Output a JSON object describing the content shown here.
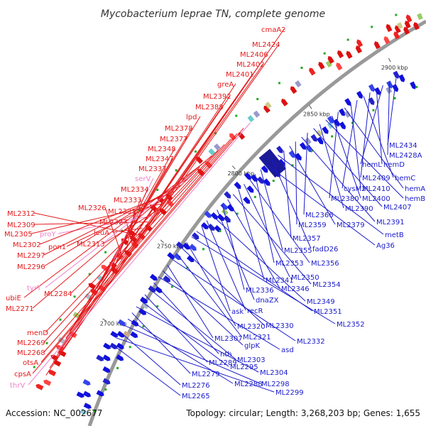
{
  "title": "Mycobacterium leprae TN, complete genome",
  "footer": {
    "accession": "Accession: NC_002677",
    "summary": "Topology: circular; Length: 3,268,203 bp; Genes: 1,655"
  },
  "colors": {
    "forward_label": "#e41a1c",
    "reverse_label": "#1a1acc",
    "rna_label": "#ee82c8",
    "backbone": "#999999",
    "rna_feature": "#22aa22"
  },
  "ticks": [
    "2700 kbp",
    "2750 kbp",
    "2800 kbp",
    "2850 kbp",
    "2900 kbp"
  ],
  "forward_labels": [
    {
      "text": "cmaA2",
      "kind": "cds"
    },
    {
      "text": "ML2424",
      "kind": "cds"
    },
    {
      "text": "ML2406",
      "kind": "cds"
    },
    {
      "text": "ML2402",
      "kind": "cds"
    },
    {
      "text": "ML2401",
      "kind": "cds"
    },
    {
      "text": "greA",
      "kind": "cds"
    },
    {
      "text": "ML2392",
      "kind": "cds"
    },
    {
      "text": "ML2388",
      "kind": "cds"
    },
    {
      "text": "lpd",
      "kind": "cds"
    },
    {
      "text": "ML2378",
      "kind": "cds"
    },
    {
      "text": "ML2377",
      "kind": "cds"
    },
    {
      "text": "ML2348",
      "kind": "cds"
    },
    {
      "text": "ML2347",
      "kind": "cds"
    },
    {
      "text": "ML2337",
      "kind": "cds"
    },
    {
      "text": "serV",
      "kind": "rna"
    },
    {
      "text": "ML2334",
      "kind": "cds"
    },
    {
      "text": "ML2333",
      "kind": "cds"
    },
    {
      "text": "ML2326",
      "kind": "cds"
    },
    {
      "text": "ML2331",
      "kind": "cds"
    },
    {
      "text": "ML2327",
      "kind": "cds"
    },
    {
      "text": "ML2312",
      "kind": "cds"
    },
    {
      "text": "leuA",
      "kind": "cds"
    },
    {
      "text": "ML2309",
      "kind": "cds"
    },
    {
      "text": "proY",
      "kind": "rna"
    },
    {
      "text": "ML2313",
      "kind": "cds"
    },
    {
      "text": "ML2305",
      "kind": "cds"
    },
    {
      "text": "pon1",
      "kind": "cds"
    },
    {
      "text": "ML2302",
      "kind": "cds"
    },
    {
      "text": "ML2297",
      "kind": "cds"
    },
    {
      "text": "ML2296",
      "kind": "cds"
    },
    {
      "text": "tyrT",
      "kind": "rna"
    },
    {
      "text": "ML2284",
      "kind": "cds"
    },
    {
      "text": "ubiE",
      "kind": "cds"
    },
    {
      "text": "ML2271",
      "kind": "cds"
    },
    {
      "text": "menD",
      "kind": "cds"
    },
    {
      "text": "ML2269",
      "kind": "cds"
    },
    {
      "text": "ML2268",
      "kind": "cds"
    },
    {
      "text": "otsA",
      "kind": "cds"
    },
    {
      "text": "cpsA",
      "kind": "cds"
    },
    {
      "text": "thrV",
      "kind": "rna"
    }
  ],
  "reverse_labels": [
    {
      "text": "ML2434"
    },
    {
      "text": "ML2428A"
    },
    {
      "text": "hemL"
    },
    {
      "text": "hemD"
    },
    {
      "text": "ML2409"
    },
    {
      "text": "hemC"
    },
    {
      "text": "cysM2"
    },
    {
      "text": "ML2410"
    },
    {
      "text": "hemA"
    },
    {
      "text": "ML2380"
    },
    {
      "text": "ML2400"
    },
    {
      "text": "hemB"
    },
    {
      "text": "ML2390"
    },
    {
      "text": "ML2407"
    },
    {
      "text": "ML2366"
    },
    {
      "text": "ML2391"
    },
    {
      "text": "ML2359"
    },
    {
      "text": "ML2379"
    },
    {
      "text": "ML2357"
    },
    {
      "text": "metB"
    },
    {
      "text": "fadD26"
    },
    {
      "text": "Ag36"
    },
    {
      "text": "ML2355"
    },
    {
      "text": "ML2353"
    },
    {
      "text": "ML2356"
    },
    {
      "text": "ML2350"
    },
    {
      "text": "ML2341"
    },
    {
      "text": "ML2354"
    },
    {
      "text": "ML2346"
    },
    {
      "text": "ML2336"
    },
    {
      "text": "dnaZX"
    },
    {
      "text": "ML2349"
    },
    {
      "text": "recR"
    },
    {
      "text": "ask"
    },
    {
      "text": "ML2351"
    },
    {
      "text": "ML2352"
    },
    {
      "text": "ML2320"
    },
    {
      "text": "ML2330"
    },
    {
      "text": "ML2321"
    },
    {
      "text": "ML2332"
    },
    {
      "text": "ML2307"
    },
    {
      "text": "glpK"
    },
    {
      "text": "asd"
    },
    {
      "text": "nth"
    },
    {
      "text": "ML2303"
    },
    {
      "text": "ML2289"
    },
    {
      "text": "ML2295"
    },
    {
      "text": "ML2304"
    },
    {
      "text": "ML2279"
    },
    {
      "text": "ML2288"
    },
    {
      "text": "ML2298"
    },
    {
      "text": "ML2276"
    },
    {
      "text": "ML2299"
    },
    {
      "text": "ML2265"
    }
  ]
}
